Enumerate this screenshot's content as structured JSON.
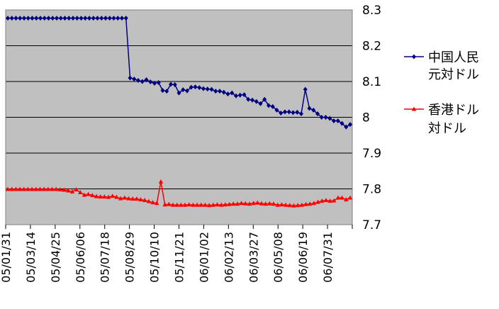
{
  "chart_data": {
    "type": "line",
    "title": "",
    "xlabel": "",
    "ylabel": "",
    "ylim": [
      7.7,
      8.3
    ],
    "yticks": [
      "8.3",
      "8.2",
      "8.1",
      "8",
      "7.9",
      "7.8",
      "7.7"
    ],
    "x_tick_labels": [
      "05/01/31",
      "05/03/14",
      "05/04/25",
      "05/06/06",
      "05/07/18",
      "05/08/29",
      "05/10/10",
      "05/11/21",
      "06/01/02",
      "06/02/13",
      "06/03/27",
      "06/05/08",
      "06/06/19",
      "06/07/31"
    ],
    "grid": true,
    "legend_position": "right",
    "series": [
      {
        "name": "中国人民元対ドル",
        "color": "#000080",
        "marker": "diamond",
        "values": [
          8.277,
          8.277,
          8.277,
          8.277,
          8.277,
          8.277,
          8.277,
          8.277,
          8.277,
          8.277,
          8.277,
          8.277,
          8.277,
          8.277,
          8.277,
          8.277,
          8.277,
          8.277,
          8.277,
          8.277,
          8.277,
          8.277,
          8.277,
          8.277,
          8.277,
          8.277,
          8.277,
          8.277,
          8.277,
          8.277,
          8.11,
          8.107,
          8.103,
          8.1,
          8.105,
          8.099,
          8.095,
          8.097,
          8.075,
          8.073,
          8.092,
          8.091,
          8.068,
          8.077,
          8.074,
          8.084,
          8.085,
          8.083,
          8.08,
          8.079,
          8.078,
          8.073,
          8.073,
          8.07,
          8.065,
          8.068,
          8.06,
          8.062,
          8.063,
          8.05,
          8.048,
          8.044,
          8.038,
          8.05,
          8.033,
          8.03,
          8.02,
          8.012,
          8.015,
          8.015,
          8.013,
          8.014,
          8.01,
          8.078,
          8.025,
          8.02,
          8.01,
          8.0,
          8.0,
          7.997,
          7.99,
          7.99,
          7.983,
          7.973,
          7.98
        ]
      },
      {
        "name": "香港ドル対ドル",
        "color": "#ff0000",
        "marker": "triangle",
        "values": [
          7.799,
          7.799,
          7.799,
          7.799,
          7.799,
          7.799,
          7.799,
          7.799,
          7.799,
          7.799,
          7.799,
          7.799,
          7.799,
          7.798,
          7.797,
          7.795,
          7.792,
          7.798,
          7.79,
          7.783,
          7.785,
          7.782,
          7.779,
          7.778,
          7.778,
          7.777,
          7.78,
          7.777,
          7.773,
          7.775,
          7.773,
          7.772,
          7.772,
          7.77,
          7.768,
          7.765,
          7.762,
          7.76,
          7.82,
          7.756,
          7.757,
          7.755,
          7.755,
          7.755,
          7.755,
          7.756,
          7.755,
          7.755,
          7.755,
          7.755,
          7.754,
          7.755,
          7.756,
          7.755,
          7.756,
          7.757,
          7.758,
          7.758,
          7.76,
          7.759,
          7.758,
          7.76,
          7.761,
          7.759,
          7.758,
          7.759,
          7.758,
          7.755,
          7.756,
          7.755,
          7.754,
          7.753,
          7.754,
          7.755,
          7.757,
          7.758,
          7.76,
          7.763,
          7.766,
          7.768,
          7.766,
          7.767,
          7.775,
          7.775,
          7.77,
          7.775
        ]
      }
    ]
  }
}
